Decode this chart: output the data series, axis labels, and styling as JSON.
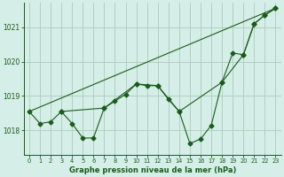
{
  "title": "Graphe pression niveau de la mer (hPa)",
  "bg_color": "#d5eee8",
  "grid_color": "#aaccbb",
  "line_color": "#1a5c1a",
  "xlim": [
    -0.5,
    23.5
  ],
  "ylim": [
    1017.3,
    1021.7
  ],
  "yticks": [
    1018,
    1019,
    1020,
    1021
  ],
  "xticks": [
    0,
    1,
    2,
    3,
    4,
    5,
    6,
    7,
    8,
    9,
    10,
    11,
    12,
    13,
    14,
    15,
    16,
    17,
    18,
    19,
    20,
    21,
    22,
    23
  ],
  "series1_x": [
    0,
    1,
    2,
    3,
    4,
    5,
    6,
    7,
    8,
    9,
    10,
    11,
    12,
    13,
    14,
    15,
    16,
    17,
    18,
    19,
    20,
    21,
    22,
    23
  ],
  "series1_y": [
    1018.55,
    1018.2,
    1018.25,
    1018.55,
    1018.2,
    1017.78,
    1017.78,
    1018.65,
    1018.85,
    1019.05,
    1019.35,
    1019.3,
    1019.3,
    1018.9,
    1018.55,
    1017.62,
    1017.75,
    1018.15,
    1019.4,
    1020.25,
    1020.2,
    1021.1,
    1021.35,
    1021.55
  ],
  "series2_x": [
    0,
    23
  ],
  "series2_y": [
    1018.55,
    1021.55
  ],
  "series3_x": [
    3,
    7,
    10,
    12,
    14,
    18,
    20,
    21,
    22,
    23
  ],
  "series3_y": [
    1018.55,
    1018.65,
    1019.35,
    1019.3,
    1018.55,
    1019.4,
    1020.2,
    1021.1,
    1021.35,
    1021.55
  ]
}
